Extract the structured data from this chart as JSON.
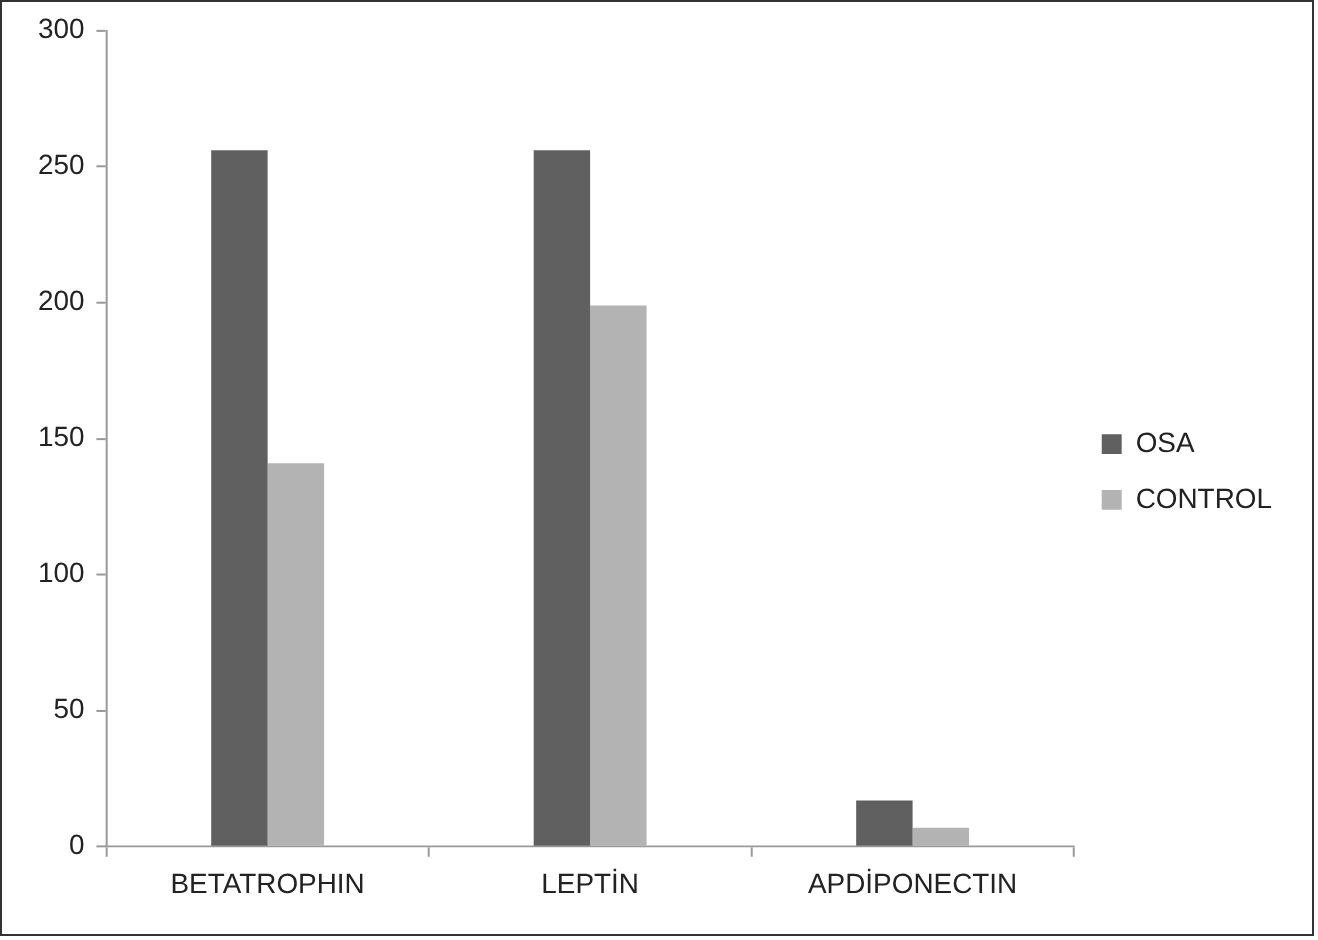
{
  "chart_data": {
    "type": "bar",
    "categories": [
      "BETATROPHIN",
      "LEPTİN",
      "APDİPONECTIN"
    ],
    "series": [
      {
        "name": "OSA",
        "color": "#606060",
        "values": [
          256,
          256,
          17
        ]
      },
      {
        "name": "CONTROL",
        "color": "#b3b3b3",
        "values": [
          141,
          199,
          7
        ]
      }
    ],
    "ylim": [
      0,
      300
    ],
    "yticks": [
      0,
      50,
      100,
      150,
      200,
      250,
      300
    ],
    "grid": false,
    "legend": "right"
  }
}
